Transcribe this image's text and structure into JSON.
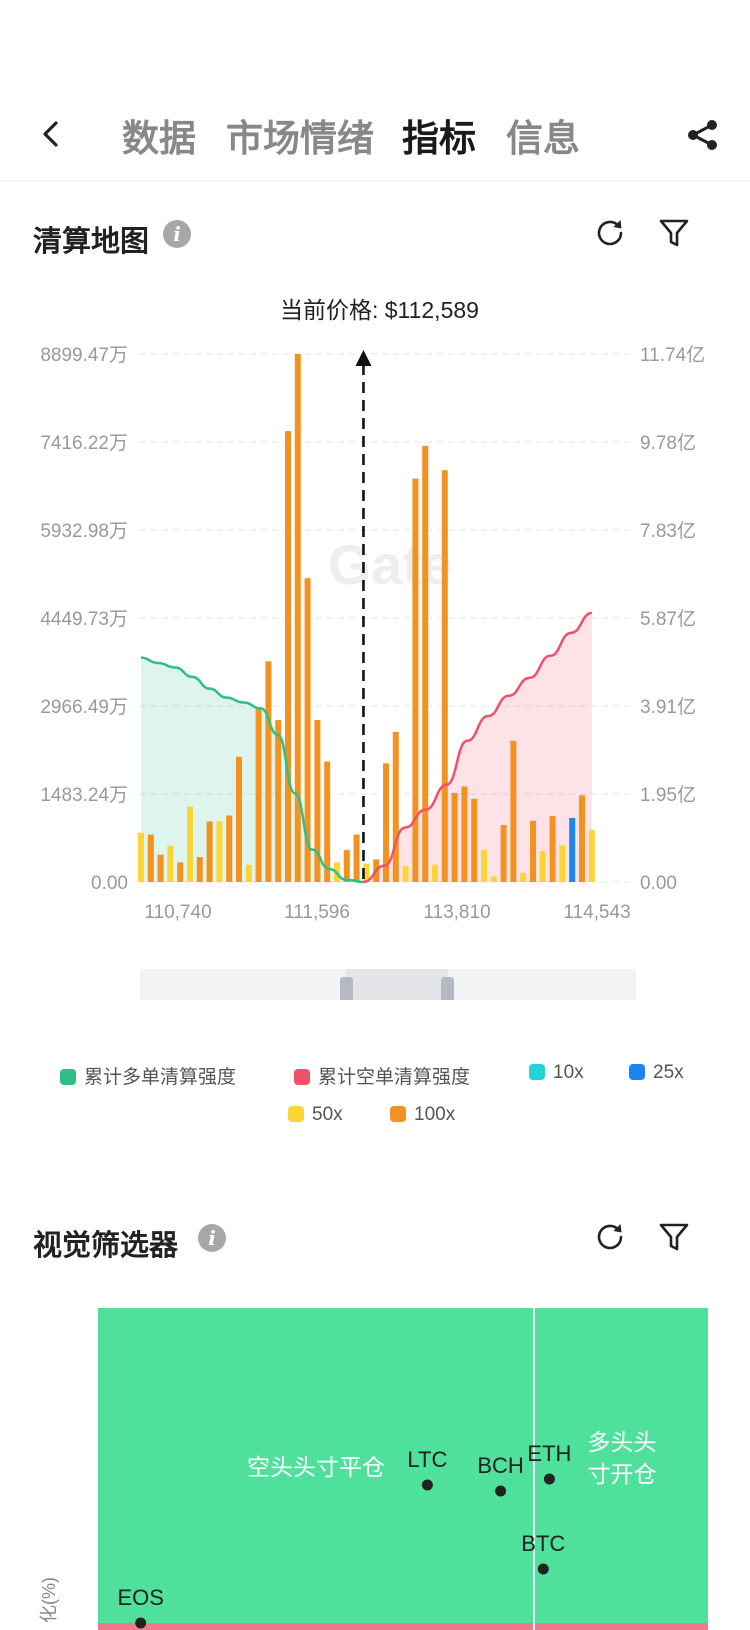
{
  "nav": {
    "tabs": [
      {
        "label": "数据",
        "active": false
      },
      {
        "label": "市场情绪",
        "active": false
      },
      {
        "label": "指标",
        "active": true
      },
      {
        "label": "信息",
        "active": false
      }
    ]
  },
  "liquidation": {
    "title": "清算地图",
    "current_price_label": "当前价格: $112,589",
    "watermark": "Gate",
    "legend": [
      {
        "label": "累计多单清算强度",
        "color": "#2dbf86"
      },
      {
        "label": "累计空单清算强度",
        "color": "#f0516a"
      },
      {
        "label": "10x",
        "color": "#23d1d8"
      },
      {
        "label": "25x",
        "color": "#1e84f0"
      },
      {
        "label": "50x",
        "color": "#fcd535"
      },
      {
        "label": "100x",
        "color": "#f39220"
      }
    ]
  },
  "chart_data": [
    {
      "type": "bar",
      "title": "清算地图",
      "current_price": 112589,
      "x_tick_labels": [
        "110,740",
        "111,596",
        "113,810",
        "114,543"
      ],
      "y_left_ticks": [
        "0.00",
        "1483.24万",
        "2966.49万",
        "4449.73万",
        "5932.98万",
        "7416.22万",
        "8899.47万"
      ],
      "y_right_ticks": [
        "0.00",
        "1.95亿",
        "3.91亿",
        "5.87亿",
        "7.83亿",
        "9.78亿",
        "11.74亿"
      ],
      "y_left_range_wan": [
        0,
        8899.47
      ],
      "y_right_range_yi": [
        0,
        11.74
      ],
      "grid": true,
      "bars_wan": [
        {
          "i": 0,
          "lev": "50x",
          "v": 830
        },
        {
          "i": 1,
          "lev": "100x",
          "v": 800
        },
        {
          "i": 2,
          "lev": "100x",
          "v": 460
        },
        {
          "i": 3,
          "lev": "50x",
          "v": 610
        },
        {
          "i": 4,
          "lev": "100x",
          "v": 330
        },
        {
          "i": 5,
          "lev": "50x",
          "v": 1270
        },
        {
          "i": 6,
          "lev": "100x",
          "v": 420
        },
        {
          "i": 7,
          "lev": "100x",
          "v": 1020
        },
        {
          "i": 8,
          "lev": "50x",
          "v": 1020
        },
        {
          "i": 9,
          "lev": "100x",
          "v": 1120
        },
        {
          "i": 10,
          "lev": "100x",
          "v": 2110
        },
        {
          "i": 11,
          "lev": "50x",
          "v": 290
        },
        {
          "i": 12,
          "lev": "100x",
          "v": 2930
        },
        {
          "i": 13,
          "lev": "100x",
          "v": 3720
        },
        {
          "i": 14,
          "lev": "100x",
          "v": 2730
        },
        {
          "i": 15,
          "lev": "100x",
          "v": 7600
        },
        {
          "i": 16,
          "lev": "100x",
          "v": 8900
        },
        {
          "i": 17,
          "lev": "100x",
          "v": 5120
        },
        {
          "i": 18,
          "lev": "100x",
          "v": 2730
        },
        {
          "i": 19,
          "lev": "100x",
          "v": 2030
        },
        {
          "i": 20,
          "lev": "50x",
          "v": 330
        },
        {
          "i": 21,
          "lev": "100x",
          "v": 540
        },
        {
          "i": 22,
          "lev": "100x",
          "v": 800
        },
        {
          "i": 23,
          "lev": "50x",
          "v": 310
        },
        {
          "i": 24,
          "lev": "100x",
          "v": 380
        },
        {
          "i": 25,
          "lev": "100x",
          "v": 2000
        },
        {
          "i": 26,
          "lev": "100x",
          "v": 2530
        },
        {
          "i": 27,
          "lev": "50x",
          "v": 270
        },
        {
          "i": 28,
          "lev": "100x",
          "v": 6800
        },
        {
          "i": 29,
          "lev": "100x",
          "v": 7350
        },
        {
          "i": 30,
          "lev": "50x",
          "v": 290
        },
        {
          "i": 31,
          "lev": "100x",
          "v": 6940
        },
        {
          "i": 32,
          "lev": "100x",
          "v": 1500
        },
        {
          "i": 33,
          "lev": "100x",
          "v": 1610
        },
        {
          "i": 34,
          "lev": "100x",
          "v": 1400
        },
        {
          "i": 35,
          "lev": "50x",
          "v": 540
        },
        {
          "i": 36,
          "lev": "50x",
          "v": 90
        },
        {
          "i": 37,
          "lev": "100x",
          "v": 960
        },
        {
          "i": 38,
          "lev": "100x",
          "v": 2380
        },
        {
          "i": 39,
          "lev": "50x",
          "v": 150
        },
        {
          "i": 40,
          "lev": "100x",
          "v": 1030
        },
        {
          "i": 41,
          "lev": "50x",
          "v": 520
        },
        {
          "i": 42,
          "lev": "100x",
          "v": 1110
        },
        {
          "i": 43,
          "lev": "50x",
          "v": 620
        },
        {
          "i": 44,
          "lev": "25x",
          "v": 1080
        },
        {
          "i": 45,
          "lev": "100x",
          "v": 1460
        },
        {
          "i": 46,
          "lev": "50x",
          "v": 880
        }
      ],
      "long_cum_yi": [
        4.99,
        4.87,
        4.77,
        4.56,
        4.3,
        4.1,
        3.99,
        3.86,
        3.27,
        1.97,
        0.72,
        0.29,
        0.05,
        0.0
      ],
      "short_cum_yi": [
        0.0,
        0.36,
        1.21,
        1.61,
        2.16,
        3.14,
        3.69,
        4.14,
        4.54,
        5.03,
        5.54,
        5.98
      ],
      "current_price_index": 22.7
    },
    {
      "type": "scatter",
      "title": "视觉筛选器",
      "ylabel": "化(%)",
      "quadrant_labels": [
        "空头头寸平仓",
        "多头头寸开仓"
      ],
      "points": [
        {
          "label": "LTC",
          "x": 0.54,
          "y": 0.23
        },
        {
          "label": "BCH",
          "x": 0.66,
          "y": 0.22
        },
        {
          "label": "ETH",
          "x": 0.74,
          "y": 0.24
        },
        {
          "label": "BTC",
          "x": 0.73,
          "y": 0.09
        },
        {
          "label": "EOS",
          "x": 0.07,
          "y": 0.0
        }
      ]
    }
  ],
  "filter": {
    "title": "视觉筛选器"
  }
}
